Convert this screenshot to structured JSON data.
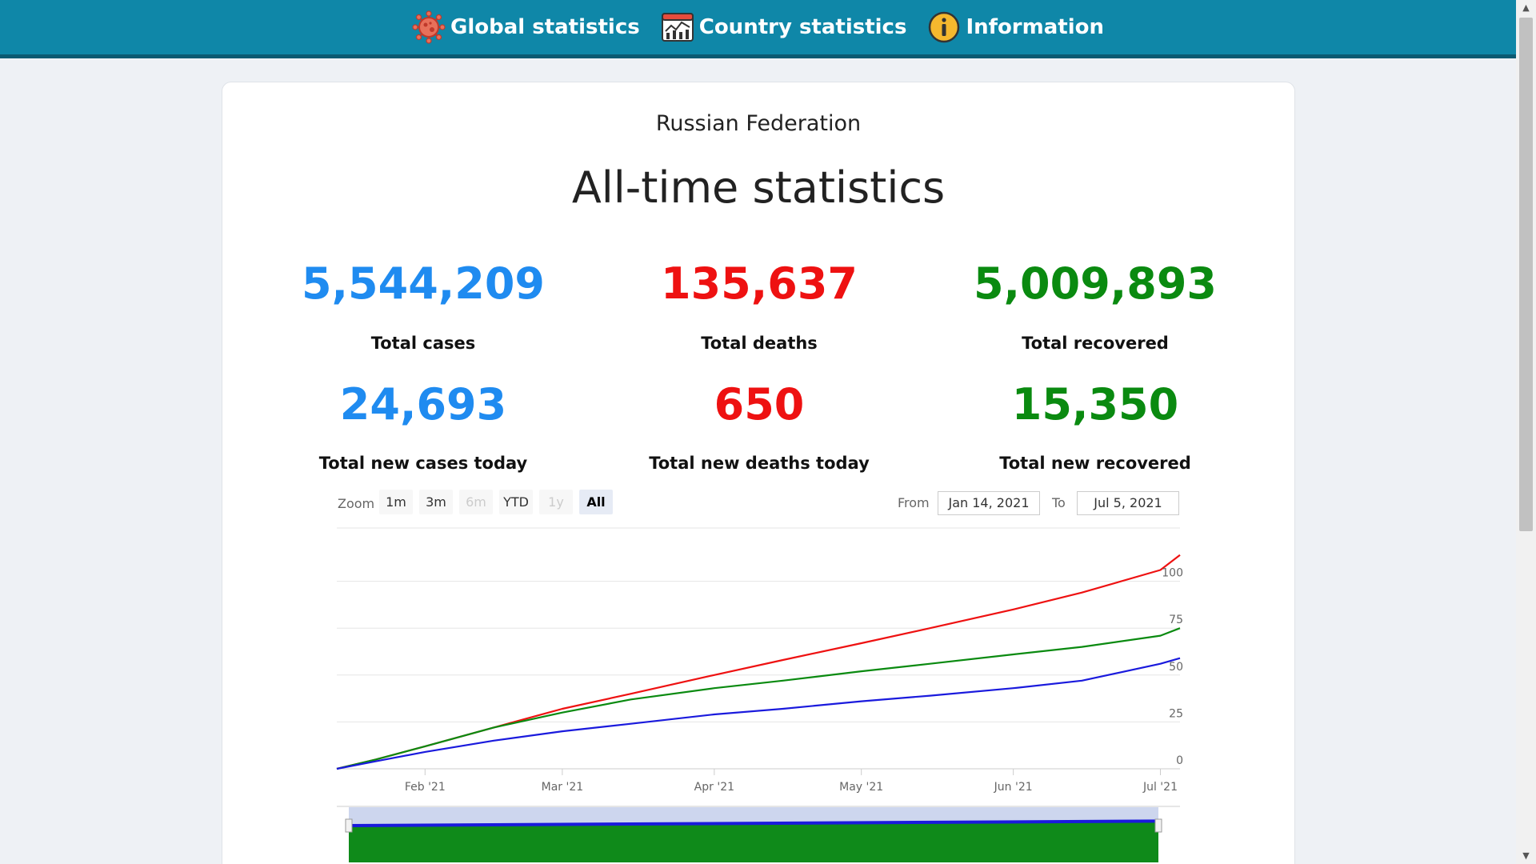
{
  "nav": {
    "items": [
      {
        "label": "Global statistics",
        "icon": "virus-icon"
      },
      {
        "label": "Country statistics",
        "icon": "chart-board-icon"
      },
      {
        "label": "Information",
        "icon": "info-icon"
      }
    ]
  },
  "page": {
    "country": "Russian Federation",
    "heading": "All-time statistics"
  },
  "stats": {
    "total_cases": {
      "value": "5,544,209",
      "label": "Total cases",
      "color": "#1f8bf0"
    },
    "total_deaths": {
      "value": "135,637",
      "label": "Total deaths",
      "color": "#ee1111"
    },
    "total_recovered": {
      "value": "5,009,893",
      "label": "Total recovered",
      "color": "#0a8a10"
    },
    "new_cases": {
      "value": "24,693",
      "label": "Total new cases today",
      "color": "#1f8bf0"
    },
    "new_deaths": {
      "value": "650",
      "label": "Total new deaths today",
      "color": "#ee1111"
    },
    "new_recovered": {
      "value": "15,350",
      "label": "Total new recovered",
      "color": "#0a8a10"
    }
  },
  "range_selector": {
    "zoom_label": "Zoom",
    "buttons": [
      {
        "label": "1m",
        "state": "enabled"
      },
      {
        "label": "3m",
        "state": "enabled"
      },
      {
        "label": "6m",
        "state": "disabled"
      },
      {
        "label": "YTD",
        "state": "enabled"
      },
      {
        "label": "1y",
        "state": "disabled"
      },
      {
        "label": "All",
        "state": "active"
      }
    ],
    "from_label": "From",
    "from_value": "Jan 14, 2021",
    "to_label": "To",
    "to_value": "Jul 5, 2021"
  },
  "chart_data": {
    "type": "line",
    "x_range": [
      "2021-01-14",
      "2021-07-05"
    ],
    "x_ticks": [
      {
        "date": "2021-02-01",
        "label": "Feb '21"
      },
      {
        "date": "2021-03-01",
        "label": "Mar '21"
      },
      {
        "date": "2021-04-01",
        "label": "Apr '21"
      },
      {
        "date": "2021-05-01",
        "label": "May '21"
      },
      {
        "date": "2021-06-01",
        "label": "Jun '21"
      },
      {
        "date": "2021-07-01",
        "label": "Jul '21"
      }
    ],
    "y_ticks": [
      0,
      25,
      50,
      75,
      100
    ],
    "ylim": [
      0,
      125
    ],
    "grid": true,
    "series": [
      {
        "color": "#ee1111",
        "points": [
          [
            "2021-01-14",
            0
          ],
          [
            "2021-01-22",
            5
          ],
          [
            "2021-02-01",
            12
          ],
          [
            "2021-02-15",
            22
          ],
          [
            "2021-03-01",
            32
          ],
          [
            "2021-03-15",
            40
          ],
          [
            "2021-04-01",
            50
          ],
          [
            "2021-04-15",
            58
          ],
          [
            "2021-05-01",
            67
          ],
          [
            "2021-05-15",
            75
          ],
          [
            "2021-06-01",
            85
          ],
          [
            "2021-06-15",
            94
          ],
          [
            "2021-07-01",
            106
          ],
          [
            "2021-07-05",
            114
          ]
        ]
      },
      {
        "color": "#0a8a10",
        "points": [
          [
            "2021-01-14",
            0
          ],
          [
            "2021-01-22",
            5
          ],
          [
            "2021-02-01",
            12
          ],
          [
            "2021-02-15",
            22
          ],
          [
            "2021-03-01",
            30
          ],
          [
            "2021-03-15",
            37
          ],
          [
            "2021-04-01",
            43
          ],
          [
            "2021-04-15",
            47
          ],
          [
            "2021-05-01",
            52
          ],
          [
            "2021-05-15",
            56
          ],
          [
            "2021-06-01",
            61
          ],
          [
            "2021-06-15",
            65
          ],
          [
            "2021-07-01",
            71
          ],
          [
            "2021-07-05",
            75
          ]
        ]
      },
      {
        "color": "#1a1add",
        "points": [
          [
            "2021-01-14",
            0
          ],
          [
            "2021-01-22",
            4
          ],
          [
            "2021-02-01",
            9
          ],
          [
            "2021-02-15",
            15
          ],
          [
            "2021-03-01",
            20
          ],
          [
            "2021-03-15",
            24
          ],
          [
            "2021-04-01",
            29
          ],
          [
            "2021-04-15",
            32
          ],
          [
            "2021-05-01",
            36
          ],
          [
            "2021-05-15",
            39
          ],
          [
            "2021-06-01",
            43
          ],
          [
            "2021-06-15",
            47
          ],
          [
            "2021-07-01",
            56
          ],
          [
            "2021-07-05",
            59
          ]
        ]
      }
    ],
    "navigator": true
  }
}
